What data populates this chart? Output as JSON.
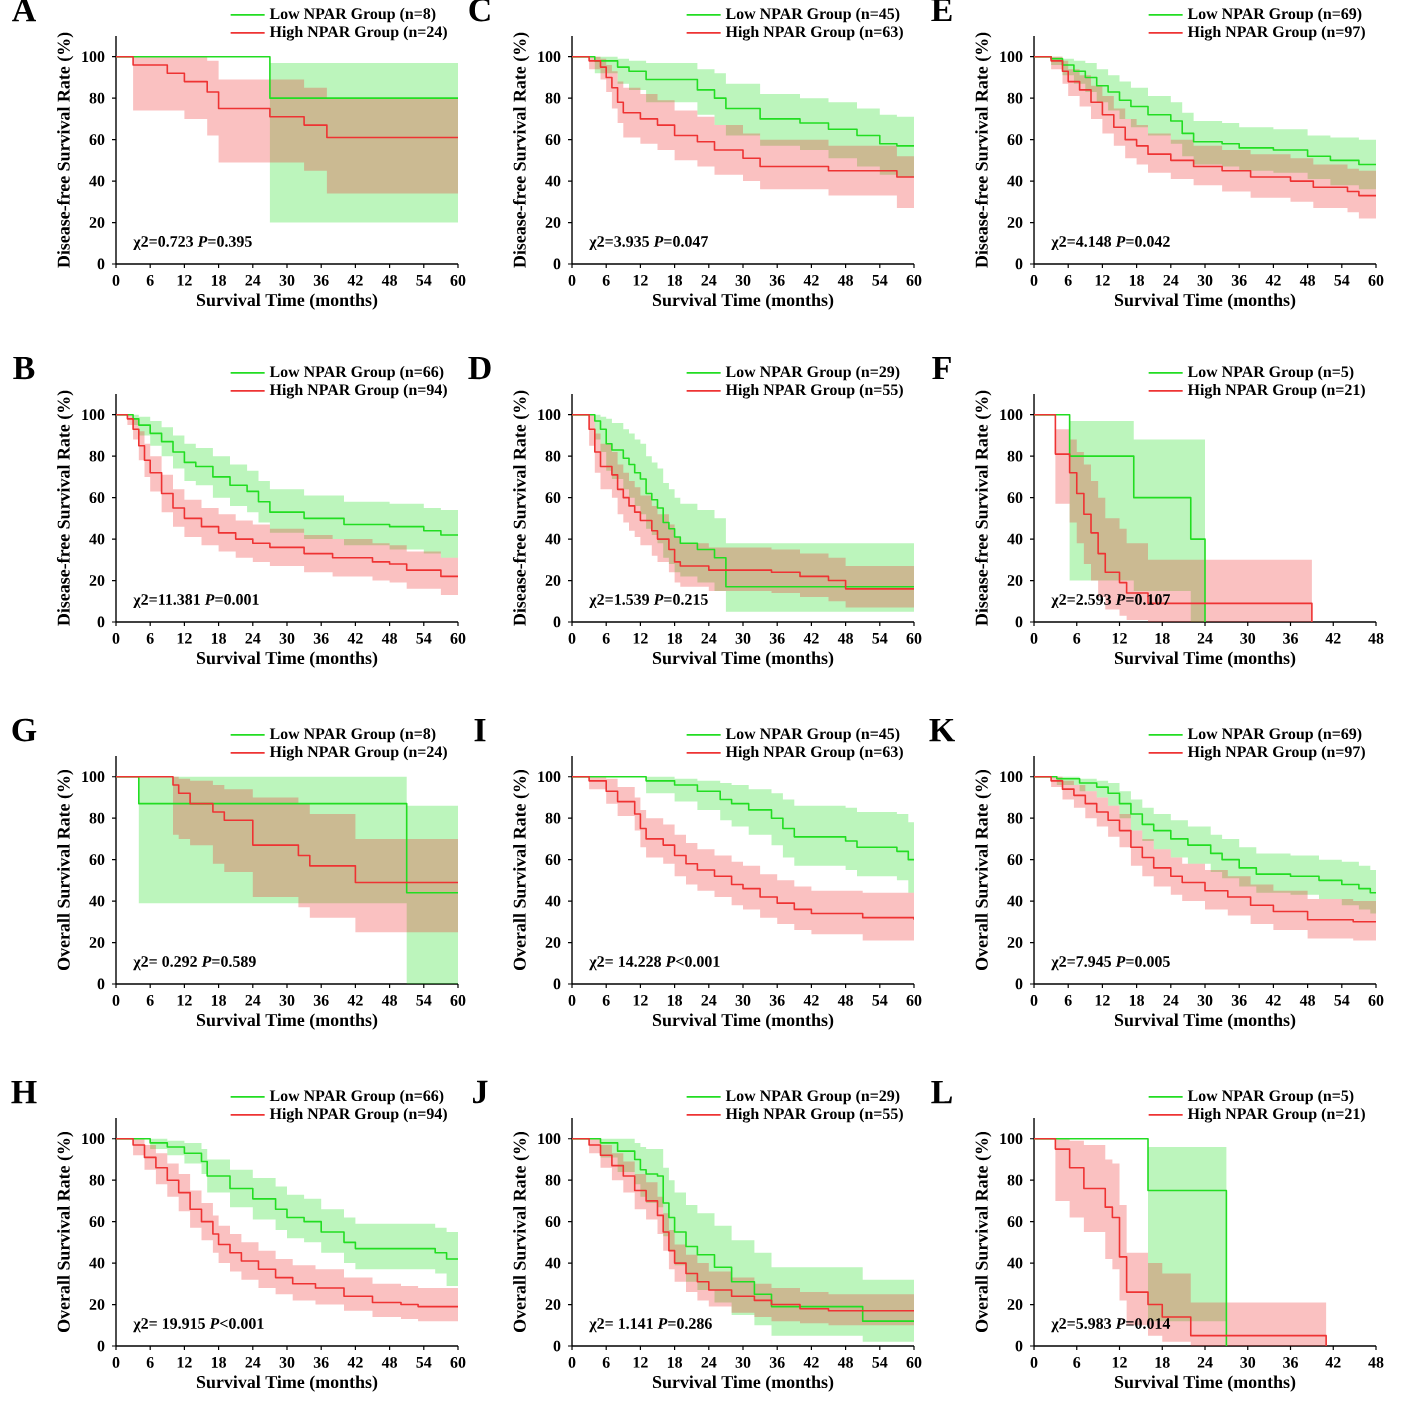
{
  "chart_data": [
    {
      "type": "step",
      "title": "A",
      "xlabel": "Survival Time (months)",
      "ylabel": "Disease-free Survival Rate (%)",
      "annotations": [
        "χ2=0.723 *P*=0.395"
      ],
      "xlim": [
        0,
        60
      ],
      "ylim": [
        0,
        110
      ],
      "xticks": [
        0,
        6,
        12,
        18,
        24,
        30,
        36,
        42,
        48,
        54,
        60
      ],
      "yticks": [
        0,
        20,
        40,
        60,
        80,
        100
      ],
      "legend": "top right",
      "series": [
        {
          "name": "Low NPAR Group (n=8)",
          "color": "#22dd22",
          "x": [
            0,
            27,
            60
          ],
          "values": [
            100,
            80,
            80
          ],
          "lower": [
            100,
            20,
            20
          ],
          "upper": [
            100,
            97,
            97
          ]
        },
        {
          "name": "High NPAR Group (n=24)",
          "color": "#ee3333",
          "x": [
            0,
            3,
            9,
            12,
            16,
            18,
            27,
            33,
            37,
            60
          ],
          "values": [
            100,
            96,
            92,
            88,
            83,
            75,
            71,
            67,
            61,
            61
          ],
          "lower": [
            100,
            74,
            74,
            70,
            62,
            49,
            49,
            45,
            34,
            34
          ],
          "upper": [
            100,
            100,
            100,
            100,
            98,
            89,
            89,
            85,
            80,
            80
          ]
        }
      ]
    },
    {
      "type": "step",
      "title": "C",
      "xlabel": "Survival Time (months)",
      "ylabel": "Disease-free Survival Rate (%)",
      "annotations": [
        "χ2=3.935 *P*=0.047"
      ],
      "xlim": [
        0,
        60
      ],
      "ylim": [
        0,
        110
      ],
      "xticks": [
        0,
        6,
        12,
        18,
        24,
        30,
        36,
        42,
        48,
        54,
        60
      ],
      "yticks": [
        0,
        20,
        40,
        60,
        80,
        100
      ],
      "legend": "top right",
      "series": [
        {
          "name": "Low NPAR Group (n=45)",
          "color": "#22dd22",
          "x": [
            0,
            4,
            8,
            10,
            13,
            22,
            25,
            27,
            33,
            40,
            45,
            50,
            54,
            57,
            60
          ],
          "values": [
            100,
            98,
            95,
            93,
            89,
            84,
            80,
            75,
            70,
            68,
            65,
            62,
            58,
            57,
            57
          ],
          "lower": [
            100,
            92,
            87,
            84,
            78,
            72,
            67,
            62,
            57,
            55,
            51,
            47,
            43,
            42,
            42
          ],
          "upper": [
            100,
            100,
            99,
            98,
            97,
            94,
            92,
            87,
            82,
            80,
            78,
            75,
            72,
            71,
            71
          ]
        },
        {
          "name": "High NPAR Group (n=63)",
          "color": "#ee3333",
          "x": [
            0,
            3,
            5,
            6,
            7,
            8,
            9,
            12,
            15,
            18,
            22,
            25,
            30,
            33,
            45,
            57,
            60
          ],
          "values": [
            100,
            98,
            95,
            90,
            85,
            78,
            73,
            70,
            67,
            62,
            59,
            55,
            51,
            47,
            45,
            42,
            42
          ],
          "lower": [
            100,
            94,
            89,
            83,
            75,
            68,
            61,
            58,
            55,
            50,
            47,
            43,
            40,
            36,
            33,
            27,
            27
          ],
          "upper": [
            100,
            100,
            99,
            96,
            93,
            88,
            85,
            82,
            79,
            74,
            71,
            67,
            63,
            60,
            57,
            52,
            52
          ]
        }
      ]
    },
    {
      "type": "step",
      "title": "E",
      "xlabel": "Survival Time (months)",
      "ylabel": "Disease-free Survival Rate (%)",
      "annotations": [
        "χ2=4.148 *P*=0.042"
      ],
      "xlim": [
        0,
        60
      ],
      "ylim": [
        0,
        110
      ],
      "xticks": [
        0,
        6,
        12,
        18,
        24,
        30,
        36,
        42,
        48,
        54,
        60
      ],
      "yticks": [
        0,
        20,
        40,
        60,
        80,
        100
      ],
      "legend": "top right",
      "series": [
        {
          "name": "Low NPAR Group (n=69)",
          "color": "#22dd22",
          "x": [
            0,
            3,
            5,
            7,
            9,
            11,
            13,
            15,
            17,
            20,
            24,
            26,
            28,
            33,
            36,
            42,
            48,
            52,
            57,
            60
          ],
          "values": [
            100,
            99,
            96,
            93,
            90,
            86,
            83,
            79,
            76,
            72,
            69,
            63,
            59,
            58,
            56,
            55,
            52,
            50,
            48,
            48
          ],
          "lower": [
            100,
            96,
            91,
            87,
            83,
            78,
            74,
            70,
            66,
            62,
            58,
            52,
            48,
            47,
            45,
            44,
            41,
            38,
            36,
            36
          ],
          "upper": [
            100,
            100,
            99,
            98,
            97,
            94,
            91,
            88,
            85,
            81,
            78,
            73,
            69,
            68,
            66,
            65,
            62,
            61,
            60,
            60
          ]
        },
        {
          "name": "High NPAR Group (n=97)",
          "color": "#ee3333",
          "x": [
            0,
            3,
            5,
            6,
            8,
            10,
            12,
            14,
            16,
            18,
            20,
            24,
            28,
            33,
            38,
            45,
            49,
            55,
            57,
            60
          ],
          "values": [
            100,
            98,
            93,
            88,
            84,
            78,
            72,
            66,
            60,
            57,
            53,
            50,
            47,
            45,
            42,
            40,
            37,
            35,
            33,
            33
          ],
          "lower": [
            100,
            94,
            87,
            81,
            76,
            70,
            63,
            57,
            51,
            48,
            44,
            41,
            38,
            35,
            32,
            30,
            27,
            25,
            22,
            22
          ],
          "upper": [
            100,
            100,
            98,
            94,
            91,
            86,
            81,
            75,
            70,
            67,
            63,
            60,
            57,
            55,
            53,
            51,
            48,
            46,
            45,
            45
          ]
        }
      ]
    },
    {
      "type": "step",
      "title": "B",
      "xlabel": "Survival Time (months)",
      "ylabel": "Disease-free Survival Rate (%)",
      "annotations": [
        "χ2=11.381 *P*=0.001"
      ],
      "xlim": [
        0,
        60
      ],
      "ylim": [
        0,
        110
      ],
      "xticks": [
        0,
        6,
        12,
        18,
        24,
        30,
        36,
        42,
        48,
        54,
        60
      ],
      "yticks": [
        0,
        20,
        40,
        60,
        80,
        100
      ],
      "legend": "top right",
      "series": [
        {
          "name": "Low NPAR Group (n=66)",
          "color": "#22dd22",
          "x": [
            0,
            3,
            4,
            6,
            8,
            10,
            12,
            14,
            17,
            20,
            23,
            25,
            27,
            33,
            40,
            48,
            54,
            57,
            60
          ],
          "values": [
            100,
            98,
            95,
            91,
            87,
            82,
            77,
            75,
            70,
            66,
            63,
            58,
            53,
            50,
            47,
            46,
            44,
            42,
            42
          ],
          "lower": [
            100,
            95,
            90,
            85,
            80,
            74,
            68,
            66,
            60,
            56,
            53,
            48,
            43,
            40,
            37,
            35,
            33,
            31,
            31
          ],
          "upper": [
            100,
            100,
            99,
            97,
            94,
            90,
            86,
            84,
            80,
            76,
            73,
            68,
            64,
            61,
            58,
            57,
            55,
            54,
            54
          ]
        },
        {
          "name": "High NPAR Group (n=94)",
          "color": "#ee3333",
          "x": [
            0,
            2,
            3,
            4,
            5,
            6,
            8,
            10,
            12,
            15,
            18,
            21,
            24,
            27,
            33,
            38,
            45,
            48,
            51,
            57,
            60
          ],
          "values": [
            100,
            98,
            93,
            85,
            78,
            72,
            62,
            55,
            50,
            46,
            43,
            40,
            38,
            36,
            33,
            31,
            29,
            28,
            25,
            22,
            22
          ],
          "lower": [
            100,
            95,
            88,
            78,
            70,
            63,
            53,
            46,
            41,
            37,
            34,
            31,
            29,
            27,
            24,
            22,
            20,
            19,
            16,
            13,
            13
          ],
          "upper": [
            100,
            100,
            98,
            92,
            86,
            80,
            71,
            64,
            59,
            55,
            52,
            49,
            47,
            45,
            42,
            40,
            38,
            37,
            34,
            31,
            31
          ]
        }
      ]
    },
    {
      "type": "step",
      "title": "D",
      "xlabel": "Survival Time (months)",
      "ylabel": "Disease-free Survival Rate (%)",
      "annotations": [
        "χ2=1.539 *P*=0.215"
      ],
      "xlim": [
        0,
        60
      ],
      "ylim": [
        0,
        110
      ],
      "xticks": [
        0,
        6,
        12,
        18,
        24,
        30,
        36,
        42,
        48,
        54,
        60
      ],
      "yticks": [
        0,
        20,
        40,
        60,
        80,
        100
      ],
      "legend": "top right",
      "series": [
        {
          "name": "Low NPAR Group (n=29)",
          "color": "#22dd22",
          "x": [
            0,
            4,
            5,
            6,
            7,
            9,
            10,
            11,
            12,
            13,
            14,
            15,
            16,
            17,
            18,
            19,
            22,
            25,
            27,
            60
          ],
          "values": [
            100,
            97,
            93,
            86,
            83,
            79,
            76,
            72,
            69,
            62,
            59,
            55,
            48,
            45,
            41,
            38,
            35,
            31,
            17,
            17
          ],
          "lower": [
            100,
            88,
            82,
            73,
            69,
            64,
            60,
            56,
            52,
            45,
            42,
            38,
            31,
            28,
            24,
            22,
            19,
            15,
            5,
            5
          ],
          "upper": [
            100,
            100,
            99,
            98,
            96,
            93,
            91,
            88,
            86,
            80,
            77,
            74,
            67,
            64,
            60,
            57,
            54,
            50,
            38,
            38
          ]
        },
        {
          "name": "High NPAR Group (n=55)",
          "color": "#ee3333",
          "x": [
            0,
            3,
            4,
            5,
            7,
            8,
            9,
            10,
            11,
            12,
            14,
            15,
            17,
            18,
            19,
            24,
            35,
            40,
            45,
            48,
            60
          ],
          "values": [
            100,
            93,
            82,
            75,
            71,
            64,
            60,
            56,
            53,
            49,
            44,
            40,
            35,
            29,
            27,
            25,
            24,
            22,
            20,
            16,
            16
          ],
          "lower": [
            100,
            85,
            72,
            64,
            60,
            52,
            48,
            44,
            41,
            37,
            32,
            29,
            24,
            19,
            17,
            15,
            14,
            12,
            10,
            7,
            7
          ],
          "upper": [
            100,
            100,
            91,
            86,
            82,
            76,
            72,
            68,
            65,
            61,
            56,
            52,
            47,
            41,
            38,
            36,
            35,
            33,
            31,
            27,
            27
          ]
        }
      ]
    },
    {
      "type": "step",
      "title": "F",
      "xlabel": "Survival Time (months)",
      "ylabel": "Disease-free Survival Rate (%)",
      "annotations": [
        "χ2=2.593 *P*=0.107"
      ],
      "xlim": [
        0,
        48
      ],
      "ylim": [
        0,
        110
      ],
      "xticks": [
        0,
        6,
        12,
        18,
        24,
        30,
        36,
        42,
        48
      ],
      "yticks": [
        0,
        20,
        40,
        60,
        80,
        100
      ],
      "legend": "top right",
      "series": [
        {
          "name": "Low NPAR Group (n=5)",
          "color": "#22dd22",
          "x": [
            0,
            5,
            14,
            22,
            24
          ],
          "values": [
            100,
            80,
            60,
            40,
            0
          ],
          "lower": [
            100,
            20,
            15,
            0,
            0
          ],
          "upper": [
            100,
            97,
            88,
            88,
            0
          ]
        },
        {
          "name": "High NPAR Group (n=21)",
          "color": "#ee3333",
          "x": [
            0,
            3,
            5,
            6,
            7,
            8,
            9,
            10,
            12,
            13,
            16,
            39
          ],
          "values": [
            100,
            81,
            72,
            62,
            52,
            43,
            33,
            24,
            19,
            14,
            9,
            0
          ],
          "lower": [
            100,
            57,
            48,
            38,
            28,
            20,
            12,
            6,
            3,
            1,
            0,
            0
          ],
          "upper": [
            100,
            93,
            88,
            82,
            76,
            68,
            60,
            50,
            45,
            38,
            30,
            0
          ]
        }
      ]
    },
    {
      "type": "step",
      "title": "G",
      "xlabel": "Survival Time (months)",
      "ylabel": "Overall Survival Rate (%)",
      "annotations": [
        "χ2= 0.292 *P*=0.589"
      ],
      "xlim": [
        0,
        60
      ],
      "ylim": [
        0,
        110
      ],
      "xticks": [
        0,
        6,
        12,
        18,
        24,
        30,
        36,
        42,
        48,
        54,
        60
      ],
      "yticks": [
        0,
        20,
        40,
        60,
        80,
        100
      ],
      "legend": "top right",
      "series": [
        {
          "name": "Low NPAR Group (n=8)",
          "color": "#22dd22",
          "x": [
            0,
            4,
            51,
            60
          ],
          "values": [
            100,
            87,
            44,
            44
          ],
          "lower": [
            100,
            39,
            0,
            0
          ],
          "upper": [
            100,
            100,
            86,
            86
          ]
        },
        {
          "name": "High NPAR Group (n=24)",
          "color": "#ee3333",
          "x": [
            0,
            10,
            11,
            13,
            17,
            19,
            24,
            32,
            34,
            42,
            60
          ],
          "values": [
            100,
            96,
            92,
            87,
            83,
            79,
            67,
            62,
            57,
            49,
            49
          ],
          "lower": [
            100,
            72,
            70,
            67,
            58,
            54,
            42,
            37,
            32,
            25,
            25
          ],
          "upper": [
            100,
            100,
            99,
            98,
            96,
            94,
            90,
            87,
            82,
            70,
            70
          ]
        }
      ]
    },
    {
      "type": "step",
      "title": "I",
      "xlabel": "Survival Time (months)",
      "ylabel": "Overall Survival Rate (%)",
      "annotations": [
        "χ2= 14.228 *P*<0.001"
      ],
      "xlim": [
        0,
        60
      ],
      "ylim": [
        0,
        110
      ],
      "xticks": [
        0,
        6,
        12,
        18,
        24,
        30,
        36,
        42,
        48,
        54,
        60
      ],
      "yticks": [
        0,
        20,
        40,
        60,
        80,
        100
      ],
      "legend": "top right",
      "series": [
        {
          "name": "Low NPAR Group (n=45)",
          "color": "#22dd22",
          "x": [
            0,
            13,
            18,
            22,
            26,
            28,
            31,
            35,
            37,
            39,
            48,
            50,
            57,
            59,
            60
          ],
          "values": [
            100,
            98,
            96,
            93,
            89,
            87,
            84,
            80,
            75,
            71,
            69,
            66,
            64,
            60,
            60
          ],
          "lower": [
            100,
            92,
            88,
            84,
            79,
            76,
            72,
            67,
            61,
            57,
            55,
            52,
            50,
            44,
            44
          ],
          "upper": [
            100,
            100,
            99,
            98,
            97,
            96,
            94,
            92,
            89,
            86,
            85,
            83,
            82,
            78,
            78
          ]
        },
        {
          "name": "High NPAR Group (n=63)",
          "color": "#ee3333",
          "x": [
            0,
            3,
            6,
            8,
            11,
            12,
            13,
            16,
            18,
            20,
            22,
            25,
            28,
            30,
            33,
            36,
            39,
            42,
            51,
            60
          ],
          "values": [
            100,
            98,
            93,
            88,
            82,
            75,
            70,
            67,
            62,
            58,
            55,
            52,
            48,
            46,
            42,
            39,
            36,
            34,
            32,
            31
          ],
          "lower": [
            100,
            94,
            87,
            81,
            74,
            66,
            61,
            58,
            52,
            48,
            45,
            42,
            38,
            36,
            32,
            29,
            26,
            24,
            21,
            19
          ],
          "upper": [
            100,
            100,
            99,
            95,
            90,
            84,
            80,
            77,
            72,
            68,
            65,
            62,
            59,
            57,
            53,
            50,
            47,
            45,
            44,
            43
          ]
        }
      ]
    },
    {
      "type": "step",
      "title": "K",
      "xlabel": "Survival Time (months)",
      "ylabel": "Overall Survival Rate (%)",
      "annotations": [
        "χ2=7.945 *P*=0.005"
      ],
      "xlim": [
        0,
        60
      ],
      "ylim": [
        0,
        110
      ],
      "xticks": [
        0,
        6,
        12,
        18,
        24,
        30,
        36,
        42,
        48,
        54,
        60
      ],
      "yticks": [
        0,
        20,
        40,
        60,
        80,
        100
      ],
      "legend": "top right",
      "series": [
        {
          "name": "Low NPAR Group (n=69)",
          "color": "#22dd22",
          "x": [
            0,
            4,
            8,
            11,
            13,
            15,
            17,
            19,
            21,
            24,
            27,
            31,
            33,
            36,
            39,
            45,
            50,
            54,
            57,
            59,
            60
          ],
          "values": [
            100,
            99,
            97,
            95,
            92,
            87,
            82,
            77,
            74,
            70,
            67,
            63,
            60,
            56,
            53,
            52,
            50,
            48,
            46,
            44,
            44
          ],
          "lower": [
            100,
            96,
            93,
            90,
            86,
            80,
            74,
            69,
            65,
            61,
            58,
            54,
            51,
            47,
            44,
            43,
            41,
            38,
            36,
            34,
            34
          ],
          "upper": [
            100,
            100,
            99,
            98,
            97,
            93,
            89,
            85,
            82,
            79,
            76,
            72,
            70,
            66,
            63,
            62,
            60,
            59,
            57,
            55,
            55
          ]
        },
        {
          "name": "High NPAR Group (n=97)",
          "color": "#ee3333",
          "x": [
            0,
            3,
            5,
            7,
            9,
            11,
            13,
            15,
            17,
            19,
            21,
            24,
            26,
            30,
            34,
            38,
            42,
            48,
            56,
            60
          ],
          "values": [
            100,
            98,
            94,
            91,
            87,
            83,
            79,
            74,
            66,
            61,
            56,
            52,
            49,
            45,
            42,
            38,
            35,
            31,
            30,
            30
          ],
          "lower": [
            100,
            95,
            89,
            85,
            80,
            76,
            71,
            66,
            57,
            52,
            47,
            43,
            40,
            36,
            33,
            29,
            26,
            22,
            21,
            21
          ],
          "upper": [
            100,
            100,
            98,
            96,
            93,
            90,
            86,
            82,
            74,
            70,
            65,
            61,
            58,
            55,
            52,
            48,
            45,
            41,
            40,
            40
          ]
        }
      ]
    },
    {
      "type": "step",
      "title": "H",
      "xlabel": "Survival Time (months)",
      "ylabel": "Overall Survival Rate (%)",
      "annotations": [
        "χ2= 19.915 *P*<0.001"
      ],
      "xlim": [
        0,
        60
      ],
      "ylim": [
        0,
        110
      ],
      "xticks": [
        0,
        6,
        12,
        18,
        24,
        30,
        36,
        42,
        48,
        54,
        60
      ],
      "yticks": [
        0,
        20,
        40,
        60,
        80,
        100
      ],
      "legend": "top right",
      "series": [
        {
          "name": "Low NPAR Group (n=66)",
          "color": "#22dd22",
          "x": [
            0,
            6,
            9,
            12,
            15,
            16,
            20,
            24,
            28,
            30,
            33,
            36,
            40,
            42,
            56,
            58,
            60
          ],
          "values": [
            100,
            98,
            96,
            93,
            89,
            82,
            76,
            71,
            66,
            62,
            60,
            55,
            50,
            47,
            45,
            42,
            42
          ],
          "lower": [
            100,
            95,
            92,
            88,
            83,
            74,
            67,
            61,
            56,
            52,
            50,
            45,
            40,
            37,
            35,
            29,
            29
          ],
          "upper": [
            100,
            100,
            99,
            98,
            95,
            90,
            85,
            81,
            77,
            73,
            71,
            66,
            62,
            59,
            57,
            55,
            55
          ]
        },
        {
          "name": "High NPAR Group (n=94)",
          "color": "#ee3333",
          "x": [
            0,
            3,
            5,
            7,
            9,
            11,
            13,
            15,
            17,
            18,
            20,
            22,
            25,
            28,
            31,
            35,
            40,
            45,
            50,
            53,
            60
          ],
          "values": [
            100,
            97,
            91,
            86,
            80,
            74,
            66,
            60,
            54,
            49,
            45,
            41,
            37,
            33,
            30,
            28,
            24,
            21,
            20,
            19,
            19
          ],
          "lower": [
            100,
            92,
            85,
            78,
            72,
            65,
            57,
            51,
            45,
            40,
            36,
            32,
            28,
            25,
            22,
            20,
            17,
            14,
            13,
            12,
            12
          ],
          "upper": [
            100,
            100,
            97,
            93,
            88,
            83,
            75,
            69,
            63,
            58,
            54,
            50,
            46,
            42,
            39,
            37,
            33,
            30,
            29,
            28,
            28
          ]
        }
      ]
    },
    {
      "type": "step",
      "title": "J",
      "xlabel": "Survival Time (months)",
      "ylabel": "Overall Survival Rate (%)",
      "annotations": [
        "χ2= 1.141 *P*=0.286"
      ],
      "xlim": [
        0,
        60
      ],
      "ylim": [
        0,
        110
      ],
      "xticks": [
        0,
        6,
        12,
        18,
        24,
        30,
        36,
        42,
        48,
        54,
        60
      ],
      "yticks": [
        0,
        20,
        40,
        60,
        80,
        100
      ],
      "legend": "top right",
      "series": [
        {
          "name": "Low NPAR Group (n=29)",
          "color": "#22dd22",
          "x": [
            0,
            5,
            8,
            11,
            12,
            13,
            15,
            16,
            17,
            18,
            20,
            22,
            25,
            28,
            32,
            35,
            50,
            51,
            60
          ],
          "values": [
            100,
            98,
            94,
            90,
            85,
            83,
            82,
            69,
            62,
            55,
            48,
            44,
            38,
            31,
            25,
            19,
            19,
            12,
            12
          ],
          "lower": [
            100,
            91,
            84,
            78,
            72,
            69,
            67,
            53,
            46,
            39,
            31,
            27,
            21,
            15,
            10,
            5,
            5,
            2,
            2
          ],
          "upper": [
            100,
            100,
            100,
            98,
            96,
            95,
            95,
            86,
            80,
            74,
            68,
            64,
            58,
            51,
            45,
            38,
            38,
            32,
            32
          ]
        },
        {
          "name": "High NPAR Group (n=55)",
          "color": "#ee3333",
          "x": [
            0,
            3,
            5,
            7,
            9,
            11,
            13,
            15,
            16,
            17,
            18,
            20,
            22,
            24,
            28,
            32,
            35,
            40,
            45,
            60
          ],
          "values": [
            100,
            97,
            92,
            87,
            82,
            75,
            70,
            63,
            55,
            46,
            40,
            35,
            31,
            27,
            24,
            22,
            20,
            18,
            17,
            17
          ],
          "lower": [
            100,
            93,
            86,
            80,
            74,
            66,
            61,
            54,
            46,
            37,
            31,
            26,
            22,
            19,
            16,
            14,
            12,
            11,
            10,
            10
          ],
          "upper": [
            100,
            100,
            97,
            93,
            89,
            83,
            79,
            72,
            64,
            56,
            49,
            44,
            40,
            36,
            33,
            30,
            28,
            26,
            25,
            25
          ]
        }
      ]
    },
    {
      "type": "step",
      "title": "L",
      "xlabel": "Survival Time (months)",
      "ylabel": "Overall Survival Rate (%)",
      "annotations": [
        "χ2=5.983 *P*=0.014"
      ],
      "xlim": [
        0,
        48
      ],
      "ylim": [
        0,
        110
      ],
      "xticks": [
        0,
        6,
        12,
        18,
        24,
        30,
        36,
        42,
        48
      ],
      "yticks": [
        0,
        20,
        40,
        60,
        80,
        100
      ],
      "legend": "top right",
      "series": [
        {
          "name": "Low NPAR Group (n=5)",
          "color": "#22dd22",
          "x": [
            0,
            16,
            27
          ],
          "values": [
            100,
            75,
            0
          ],
          "lower": [
            100,
            12,
            0
          ],
          "upper": [
            100,
            96,
            0
          ]
        },
        {
          "name": "High NPAR Group (n=21)",
          "color": "#ee3333",
          "x": [
            0,
            3,
            5,
            7,
            10,
            11,
            12,
            13,
            16,
            18,
            22,
            41
          ],
          "values": [
            100,
            95,
            86,
            76,
            67,
            62,
            43,
            26,
            20,
            14,
            5,
            0
          ],
          "lower": [
            100,
            70,
            62,
            55,
            42,
            37,
            22,
            10,
            5,
            2,
            0,
            0
          ],
          "upper": [
            100,
            100,
            99,
            97,
            90,
            88,
            68,
            45,
            40,
            35,
            21,
            0
          ]
        }
      ]
    }
  ]
}
